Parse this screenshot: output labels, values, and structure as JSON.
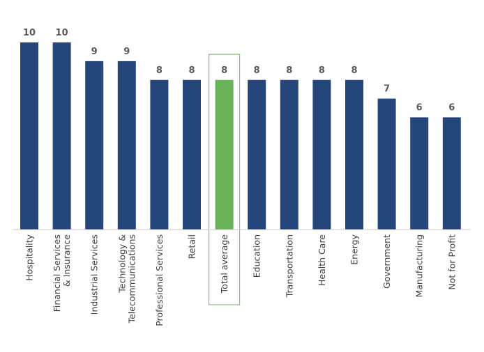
{
  "chart_data": {
    "type": "bar",
    "categories": [
      [
        "Hospitality"
      ],
      [
        "Financial Services",
        "& Insurance"
      ],
      [
        "Industrial Services"
      ],
      [
        "Technology &",
        "Telecommunications"
      ],
      [
        "Professional Services"
      ],
      [
        "Retail"
      ],
      [
        "Total average"
      ],
      [
        "Education"
      ],
      [
        "Transportation"
      ],
      [
        "Health Care"
      ],
      [
        "Energy"
      ],
      [
        "Government"
      ],
      [
        "Manufacturing"
      ],
      [
        "Not for Profit"
      ]
    ],
    "values": [
      10,
      10,
      9,
      9,
      8,
      8,
      8,
      8,
      8,
      8,
      8,
      7,
      6,
      6
    ],
    "value_labels": [
      "10",
      "10",
      "9",
      "9",
      "8",
      "8",
      "8",
      "8",
      "8",
      "8",
      "8",
      "7",
      "6",
      "6"
    ],
    "highlight_category": "Total average",
    "ylim": [
      0,
      10
    ],
    "grid": false,
    "legend": "none",
    "title": "",
    "xlabel": "",
    "ylabel": ""
  },
  "colors": {
    "bar": "#24467a",
    "highlight_bar": "#68b257",
    "highlight_box": "#7cbf6e",
    "baseline": "#c8c8c8",
    "value_text": "#595959",
    "category_text": "#404040"
  }
}
